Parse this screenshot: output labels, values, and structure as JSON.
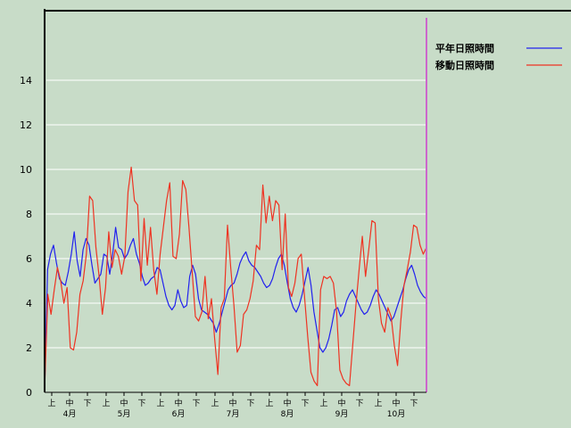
{
  "chart_data": {
    "type": "line",
    "title": "",
    "xlabel": "",
    "ylabel": "",
    "ylim": [
      0,
      15
    ],
    "yticks": [
      0,
      2,
      4,
      6,
      8,
      10,
      12,
      14
    ],
    "grid": "horizontal",
    "legend_position": "top-right",
    "colors": {
      "background": "#c8dcc8",
      "axis": "#000000",
      "grid": "#ffffff",
      "marker_line": "#cc66cc"
    },
    "months": [
      "4月",
      "5月",
      "6月",
      "7月",
      "8月",
      "9月",
      "10月"
    ],
    "periods": [
      "上",
      "中",
      "下"
    ],
    "series": [
      {
        "name": "平年日照時間",
        "color": "#2222ee",
        "values": [
          0,
          5.5,
          6.2,
          6.6,
          5.8,
          5.1,
          4.9,
          4.8,
          5.4,
          6.2,
          7.2,
          5.9,
          5.2,
          6.4,
          6.9,
          6.6,
          5.7,
          4.9,
          5.1,
          5.3,
          6.2,
          6.1,
          5.3,
          6.2,
          7.4,
          6.5,
          6.4,
          6.0,
          6.2,
          6.6,
          6.9,
          6.2,
          5.8,
          5.2,
          4.8,
          4.9,
          5.1,
          5.2,
          5.6,
          5.5,
          4.9,
          4.3,
          3.9,
          3.7,
          3.9,
          4.6,
          4.1,
          3.8,
          3.9,
          5.2,
          5.7,
          5.3,
          4.2,
          3.7,
          3.6,
          3.5,
          3.3,
          3.1,
          2.7,
          3.1,
          3.6,
          4.1,
          4.6,
          4.8,
          4.9,
          5.3,
          5.8,
          6.1,
          6.3,
          5.9,
          5.7,
          5.6,
          5.4,
          5.2,
          4.9,
          4.7,
          4.8,
          5.1,
          5.6,
          6.0,
          6.2,
          5.7,
          4.9,
          4.2,
          3.8,
          3.6,
          3.9,
          4.4,
          5.0,
          5.6,
          4.8,
          3.6,
          2.8,
          2.0,
          1.8,
          2.0,
          2.4,
          3.0,
          3.7,
          3.8,
          3.4,
          3.6,
          4.1,
          4.4,
          4.6,
          4.3,
          4.0,
          3.7,
          3.5,
          3.6,
          3.9,
          4.3,
          4.6,
          4.4,
          4.1,
          3.8,
          3.5,
          3.2,
          3.4,
          3.8,
          4.2,
          4.6,
          5.1,
          5.5,
          5.7,
          5.3,
          4.8,
          4.5,
          4.3,
          4.2
        ]
      },
      {
        "name": "移動日照時間",
        "color": "#ee3322",
        "values": [
          0.1,
          4.4,
          3.5,
          4.6,
          5.6,
          5.0,
          4.0,
          4.7,
          2.0,
          1.9,
          2.7,
          4.4,
          5.0,
          6.2,
          8.8,
          8.6,
          6.5,
          5.2,
          3.5,
          4.7,
          7.2,
          5.6,
          6.4,
          6.1,
          5.3,
          6.1,
          9.0,
          10.1,
          8.6,
          8.4,
          5.0,
          7.8,
          5.7,
          7.4,
          5.5,
          4.4,
          6.2,
          7.4,
          8.6,
          9.4,
          6.1,
          6.0,
          7.1,
          9.5,
          9.1,
          7.4,
          5.4,
          3.4,
          3.2,
          3.6,
          5.2,
          3.3,
          4.2,
          2.4,
          0.8,
          3.8,
          4.2,
          7.5,
          5.6,
          3.9,
          1.8,
          2.1,
          3.5,
          3.7,
          4.2,
          5.0,
          6.6,
          6.4,
          9.3,
          7.6,
          8.8,
          7.7,
          8.6,
          8.4,
          5.5,
          8.0,
          4.7,
          4.3,
          4.9,
          6.0,
          6.2,
          4.3,
          2.5,
          0.9,
          0.5,
          0.3,
          4.6,
          5.2,
          5.1,
          5.2,
          4.9,
          3.6,
          1.0,
          0.6,
          0.4,
          0.3,
          2.1,
          3.9,
          5.5,
          7.0,
          5.2,
          6.4,
          7.7,
          7.6,
          4.2,
          3.1,
          2.7,
          3.8,
          3.4,
          2.1,
          1.2,
          3.2,
          4.8,
          5.5,
          6.3,
          7.5,
          7.4,
          6.6,
          6.2,
          6.5
        ]
      }
    ]
  }
}
